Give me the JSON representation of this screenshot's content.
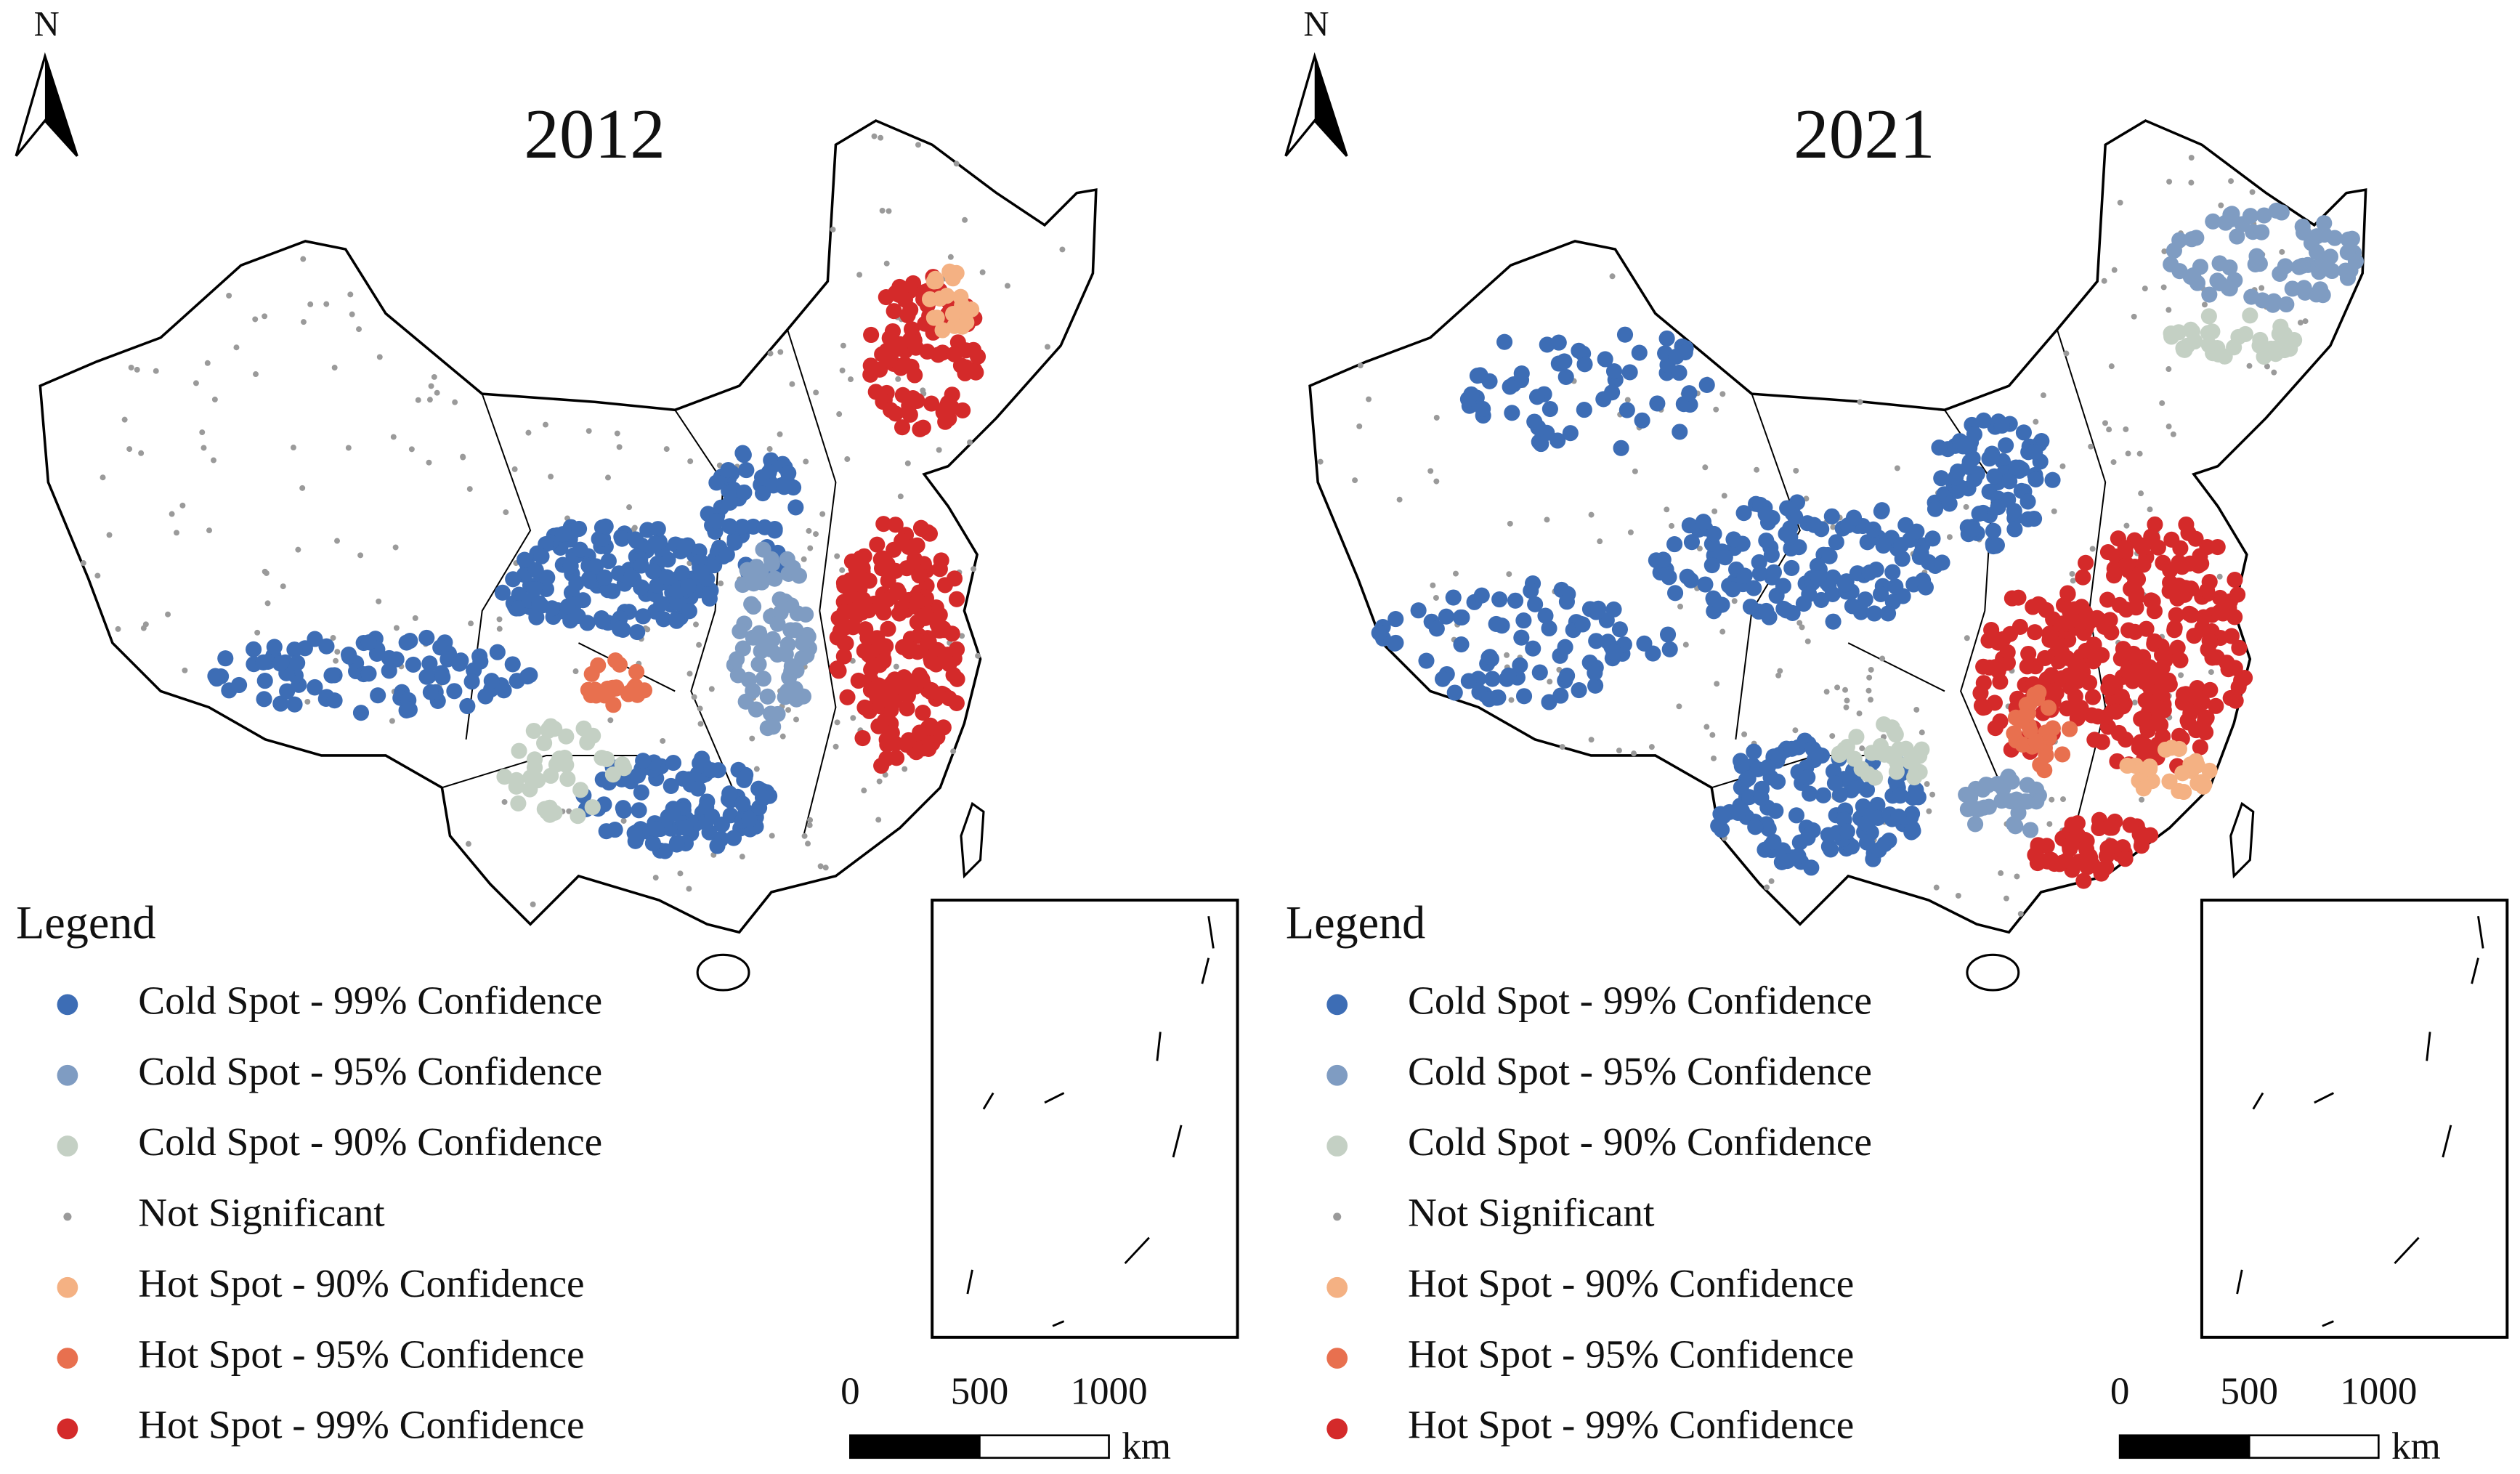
{
  "panels": [
    {
      "title": "2012",
      "north": "N",
      "legend_title": "Legend",
      "legend": [
        {
          "label": "Cold Spot - 99% Confidence",
          "color": "#3d6db5"
        },
        {
          "label": "Cold Spot - 95% Confidence",
          "color": "#7f9cc2"
        },
        {
          "label": "Cold Spot - 90% Confidence",
          "color": "#c4d0c4"
        },
        {
          "label": "Not Significant",
          "color": "#9a9a9a"
        },
        {
          "label": "Hot Spot - 90% Confidence",
          "color": "#f4b183"
        },
        {
          "label": "Hot Spot - 95% Confidence",
          "color": "#e8704f"
        },
        {
          "label": "Hot Spot - 99% Confidence",
          "color": "#d42a2a"
        }
      ],
      "scale_ticks": [
        0,
        500,
        1000
      ],
      "scale_unit": "km"
    },
    {
      "title": "2021",
      "north": "N",
      "legend_title": "Legend",
      "legend": [
        {
          "label": "Cold Spot - 99% Confidence",
          "color": "#3d6db5"
        },
        {
          "label": "Cold Spot - 95% Confidence",
          "color": "#7f9cc2"
        },
        {
          "label": "Cold Spot - 90% Confidence",
          "color": "#c4d0c4"
        },
        {
          "label": "Not Significant",
          "color": "#9a9a9a"
        },
        {
          "label": "Hot Spot - 90% Confidence",
          "color": "#f4b183"
        },
        {
          "label": "Hot Spot - 95% Confidence",
          "color": "#e8704f"
        },
        {
          "label": "Hot Spot - 99% Confidence",
          "color": "#d42a2a"
        }
      ],
      "scale_ticks": [
        0,
        500,
        1000
      ],
      "scale_unit": "km"
    }
  ]
}
